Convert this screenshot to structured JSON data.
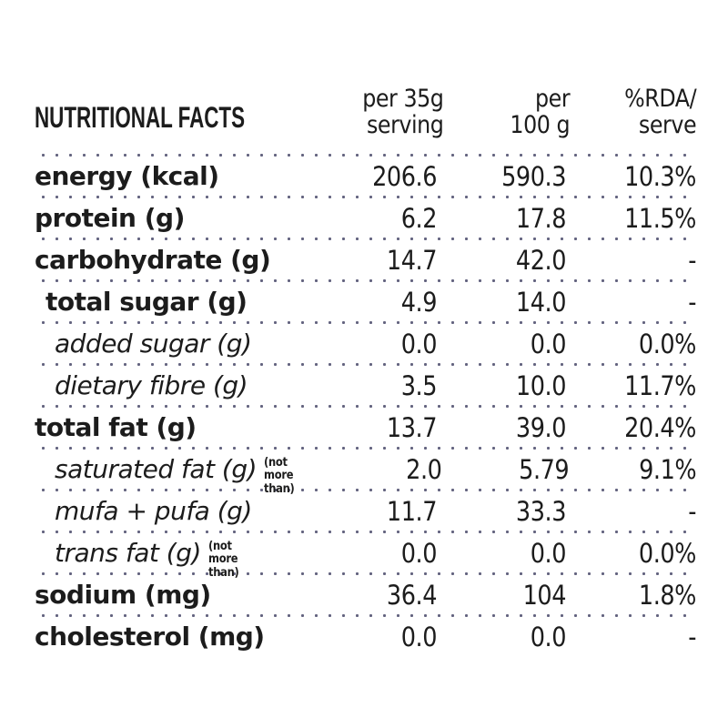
{
  "panel": {
    "title": "NUTRITIONAL FACTS",
    "columns": [
      {
        "line1": "per 35g",
        "line2": "serving"
      },
      {
        "line1": "per",
        "line2": "100 g"
      },
      {
        "line1": "%RDA/",
        "line2": "serve"
      }
    ],
    "rows": [
      {
        "label": "energy (kcal)",
        "style": "bold",
        "indent": 0,
        "note": "",
        "serving": "206.6",
        "per100": "590.3",
        "rda": "10.3%"
      },
      {
        "label": "protein (g)",
        "style": "bold",
        "indent": 0,
        "note": "",
        "serving": "6.2",
        "per100": "17.8",
        "rda": "11.5%"
      },
      {
        "label": "carbohydrate (g)",
        "style": "bold",
        "indent": 0,
        "note": "",
        "serving": "14.7",
        "per100": "42.0",
        "rda": "-"
      },
      {
        "label": "total sugar (g)",
        "style": "bold",
        "indent": 1,
        "note": "",
        "serving": "4.9",
        "per100": "14.0",
        "rda": "-"
      },
      {
        "label": "added sugar (g)",
        "style": "italic",
        "indent": 2,
        "note": "",
        "serving": "0.0",
        "per100": "0.0",
        "rda": "0.0%"
      },
      {
        "label": "dietary fibre (g)",
        "style": "italic",
        "indent": 2,
        "note": "",
        "serving": "3.5",
        "per100": "10.0",
        "rda": "11.7%"
      },
      {
        "label": "total fat (g)",
        "style": "bold",
        "indent": 0,
        "note": "",
        "serving": "13.7",
        "per100": "39.0",
        "rda": "20.4%"
      },
      {
        "label": "saturated fat (g)",
        "style": "italic",
        "indent": 2,
        "note": "(not more than)",
        "serving": "2.0",
        "per100": "5.79",
        "rda": "9.1%"
      },
      {
        "label": "mufa + pufa (g)",
        "style": "italic",
        "indent": 2,
        "note": "",
        "serving": "11.7",
        "per100": "33.3",
        "rda": "-"
      },
      {
        "label": "trans fat (g)",
        "style": "italic",
        "indent": 2,
        "note": "(not more than)",
        "serving": "0.0",
        "per100": "0.0",
        "rda": "0.0%"
      },
      {
        "label": "sodium (mg)",
        "style": "bold",
        "indent": 0,
        "note": "",
        "serving": "36.4",
        "per100": "104",
        "rda": "1.8%"
      },
      {
        "label": "cholesterol (mg)",
        "style": "bold",
        "indent": 0,
        "note": "",
        "serving": "0.0",
        "per100": "0.0",
        "rda": "-"
      }
    ],
    "colors": {
      "text": "#1c1c1c",
      "dots": "#63637f",
      "background": "#ffffff"
    }
  }
}
